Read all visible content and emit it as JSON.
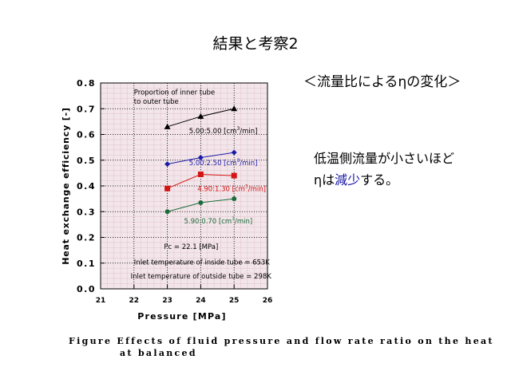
{
  "slide": {
    "title": "結果と考察2",
    "subtitle": "＜流量比によるηの変化＞",
    "note_line1": "低温側流量が小さいほど",
    "note_line2_a": "ηは",
    "note_line2_hl": "減少",
    "note_line2_b": "する。"
  },
  "caption": {
    "line1": "Figure  Effects of fluid pressure and flow rate ratio on the heat",
    "line2": "at balanced"
  },
  "chart_data": {
    "type": "line",
    "xlabel": "Pressure [MPa]",
    "ylabel": "Heat exchange efficiency [-]",
    "xlim": [
      21,
      26
    ],
    "ylim": [
      0.0,
      0.8
    ],
    "x_ticks": [
      "21",
      "22",
      "23",
      "24",
      "25",
      "26"
    ],
    "y_ticks": [
      "0.0",
      "0.1",
      "0.2",
      "0.3",
      "0.4",
      "0.5",
      "0.6",
      "0.7",
      "0.8"
    ],
    "x_minor_step": 0.2,
    "y_minor_step": 0.02,
    "grid": true,
    "background_color": "#f3e6ea",
    "legend_title_line1": "Proportion of inner tube",
    "legend_title_line2": "to outer tube",
    "series": [
      {
        "name": "5.00:5.00 [cm³/min]",
        "label_main": "5.00:5.00 [cm",
        "label_sup": "3",
        "label_tail": "/min]",
        "color": "#000000",
        "marker": "triangle",
        "label_x": 23.65,
        "label_y": 0.605,
        "x": [
          23.0,
          24.0,
          25.0
        ],
        "y": [
          0.63,
          0.67,
          0.7
        ]
      },
      {
        "name": "5.00:2.50 [cm³/min]",
        "label_main": "5.00:2.50 [cm",
        "label_sup": "3",
        "label_tail": "/min]",
        "color": "#1a1aa8",
        "marker": "diamond",
        "label_x": 23.65,
        "label_y": 0.48,
        "x": [
          23.0,
          24.0,
          25.0
        ],
        "y": [
          0.485,
          0.51,
          0.53
        ]
      },
      {
        "name": "4.90:1.30 [cm³/min]",
        "label_main": "4.90:1.30 [cm",
        "label_sup": "3",
        "label_tail": "/min]",
        "color": "#d41414",
        "marker": "square",
        "label_x": 23.9,
        "label_y": 0.38,
        "x": [
          23.0,
          24.0,
          25.0
        ],
        "y": [
          0.39,
          0.445,
          0.44
        ]
      },
      {
        "name": "5.90:0.70 [cm³/min]",
        "label_main": "5.90:0.70 [cm",
        "label_sup": "3",
        "label_tail": "/min]",
        "color": "#1b6b3a",
        "marker": "circle",
        "label_x": 23.5,
        "label_y": 0.255,
        "x": [
          23.0,
          24.0,
          25.0
        ],
        "y": [
          0.3,
          0.335,
          0.35
        ]
      }
    ],
    "annotations": [
      {
        "text": "Pc = 22.1 [MPa]",
        "x": 22.9,
        "y": 0.155
      },
      {
        "text": "Inlet temperature of inside tube = 653K",
        "x": 22.0,
        "y": 0.095
      },
      {
        "text": "Inlet temperature of outside tube = 298K",
        "x": 21.9,
        "y": 0.04
      }
    ]
  }
}
